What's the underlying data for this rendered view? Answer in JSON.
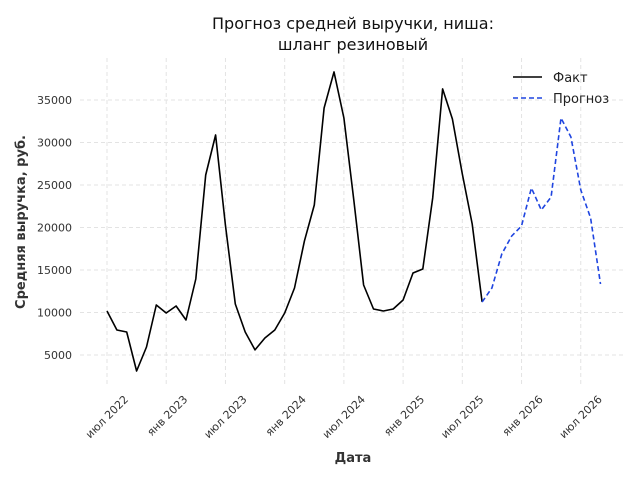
{
  "chart_data": {
    "type": "line",
    "title": "Прогноз средней выручки, ниша:\nшланг резиновый",
    "title_lines": [
      "Прогноз средней выручки, ниша:",
      "шланг резиновый"
    ],
    "xlabel": "Дата",
    "ylabel": "Средняя выручка, руб.",
    "ylim": [
      1470,
      39940
    ],
    "yticks": [
      5000,
      10000,
      15000,
      20000,
      25000,
      30000,
      35000
    ],
    "x_start": "2022-07",
    "xtick_labels": [
      "июл 2022",
      "янв 2023",
      "июл 2023",
      "янв 2024",
      "июл 2024",
      "янв 2025",
      "июл 2025",
      "янв 2026",
      "июл 2026"
    ],
    "xtick_month_index": [
      0,
      6,
      12,
      18,
      24,
      30,
      36,
      42,
      48
    ],
    "grid": true,
    "legend_position": "top-right",
    "series": [
      {
        "name": "Факт",
        "color": "#000000",
        "style": "solid",
        "start_month_index": 0,
        "values": [
          10180,
          7940,
          7700,
          3120,
          5940,
          10880,
          9940,
          10760,
          9120,
          13940,
          26180,
          30880,
          20300,
          11000,
          7700,
          5600,
          7000,
          7940,
          9940,
          12880,
          18400,
          22650,
          34060,
          38300,
          32880,
          23240,
          13240,
          10410,
          10180,
          10410,
          11470,
          14650,
          15120,
          23470,
          36300,
          32760,
          26300,
          20410,
          11230
        ]
      },
      {
        "name": "Прогноз",
        "color": "#1f45e0",
        "style": "dashed",
        "start_month_index": 38,
        "values": [
          11230,
          12880,
          16880,
          19000,
          20180,
          24650,
          22060,
          23590,
          32880,
          30650,
          24410,
          21120,
          13350
        ]
      }
    ]
  }
}
